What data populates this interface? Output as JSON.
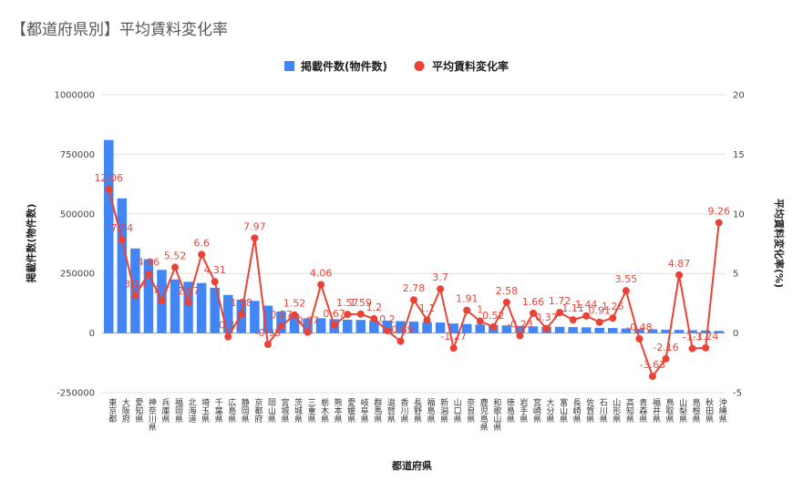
{
  "chart_data": {
    "type": "bar",
    "title": "【都道府県別】平均賃料変化率",
    "xlabel": "都道府県",
    "ylabel": "掲載件数(物件数)",
    "y2label": "平均賃料変化率(%)",
    "ylim": [
      -250000,
      1000000
    ],
    "y2lim": [
      -5,
      20
    ],
    "yticks": [
      "1000000",
      "750000",
      "500000",
      "250000",
      "0",
      "-250000"
    ],
    "y2ticks": [
      "20",
      "15",
      "10",
      "5",
      "0",
      "-5"
    ],
    "legend_position": "top",
    "grid": true,
    "colors": {
      "bar": "#4285f4",
      "line": "#ea4335",
      "grid": "#e0e0e0"
    },
    "categories": [
      "東京都",
      "大阪府",
      "愛知県",
      "神奈川県",
      "兵庫県",
      "福岡県",
      "北海道",
      "埼玉県",
      "千葉県",
      "広島県",
      "静岡県",
      "京都府",
      "岡山県",
      "宮城県",
      "茨城県",
      "三重県",
      "栃木県",
      "熊本県",
      "愛媛県",
      "岐阜県",
      "群馬県",
      "滋賀県",
      "香川県",
      "長野県",
      "福島県",
      "新潟県",
      "山口県",
      "奈良県",
      "鹿児島県",
      "和歌山県",
      "徳島県",
      "岩手県",
      "宮崎県",
      "大分県",
      "富山県",
      "長崎県",
      "佐賀県",
      "石川県",
      "山形県",
      "高知県",
      "青森県",
      "福井県",
      "鳥取県",
      "山梨県",
      "島根県",
      "秋田県",
      "沖縄県"
    ],
    "series": [
      {
        "name": "掲載件数(物件数)",
        "type": "bar",
        "values": [
          810000,
          565000,
          355000,
          310000,
          265000,
          225000,
          215000,
          210000,
          190000,
          160000,
          140000,
          135000,
          115000,
          90000,
          80000,
          62000,
          62000,
          58000,
          56000,
          55000,
          53000,
          52000,
          50000,
          48000,
          46000,
          44000,
          40000,
          38000,
          36000,
          34000,
          32000,
          30000,
          28000,
          27000,
          26000,
          25000,
          24000,
          22000,
          21000,
          19000,
          17000,
          16000,
          14000,
          13000,
          12000,
          11000,
          9000
        ]
      },
      {
        "name": "平均賃料変化率",
        "type": "line",
        "values": [
          12.06,
          7.84,
          3.14,
          4.96,
          2.7,
          5.52,
          2.57,
          6.6,
          4.31,
          -0.31,
          1.58,
          7.97,
          -0.95,
          0.57,
          1.52,
          0.07,
          4.06,
          0.67,
          1.57,
          1.59,
          1.2,
          0.2,
          -0.69,
          2.78,
          1.1,
          3.7,
          -1.27,
          1.91,
          1.0,
          0.52,
          2.58,
          -0.23,
          1.66,
          0.37,
          1.72,
          1.11,
          1.44,
          0.91,
          1.26,
          3.55,
          -0.48,
          -3.63,
          -2.16,
          4.87,
          -1.3,
          -1.24,
          9.26
        ],
        "labels": [
          "12.06",
          "7.84",
          "3.14",
          "4.96",
          "2.7",
          "5.52",
          "2.57",
          "6.6",
          "4.31",
          "-0.31",
          "1.58",
          "7.97",
          "-0.95",
          "0.57",
          "1.52",
          "0.07",
          "4.06",
          "0.67",
          "1.57",
          "1.59",
          "1.2",
          "0.2",
          "-0.69",
          "2.78",
          "1.1",
          "3.7",
          "-1.27",
          "1.91",
          "1",
          "0.52",
          "2.58",
          "-0.23",
          "1.66",
          "0.37",
          "1.72",
          "1.11",
          "1.44",
          "0.91",
          "1.26",
          "3.55",
          "-0.48",
          "-3.63",
          "-2.16",
          "4.87",
          "-1.3",
          "-1.24",
          "9.26"
        ]
      }
    ]
  }
}
